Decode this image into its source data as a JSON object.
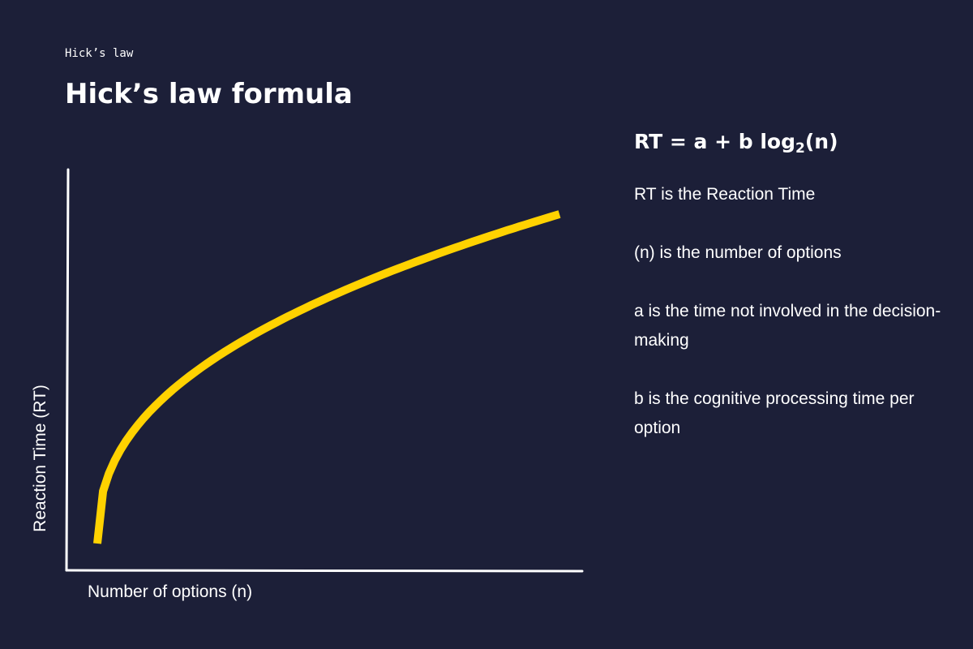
{
  "header": {
    "eyebrow": "Hick’s law",
    "title": "Hick’s law formula"
  },
  "graph": {
    "y_axis_label": "Reaction Time (RT)",
    "x_axis_label": "Number of options (n)",
    "curve_shape": "logarithmic",
    "curve_color": "#ffd200",
    "axis_color": "#ffffff"
  },
  "formula": {
    "main": "RT = a + b log",
    "subscript": "2",
    "tail": "(n)"
  },
  "definitions": [
    "RT is the Reaction  Time",
    "(n) is the number of options",
    "a is the time not involved in the decision-making",
    "b is the cognitive processing time per option"
  ],
  "colors": {
    "background": "#1c1f38",
    "text": "#ffffff",
    "accent": "#ffd200"
  }
}
